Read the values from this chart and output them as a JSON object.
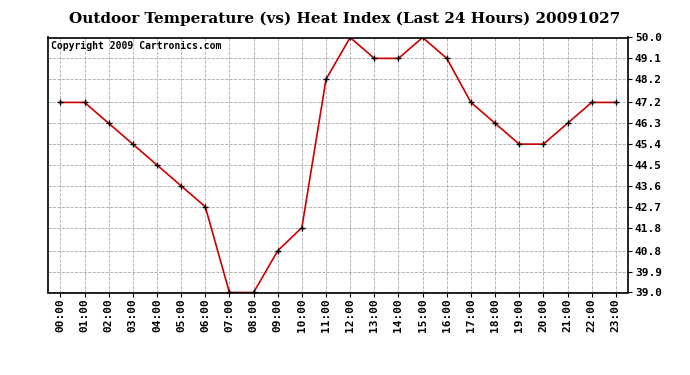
{
  "title": "Outdoor Temperature (vs) Heat Index (Last 24 Hours) 20091027",
  "copyright": "Copyright 2009 Cartronics.com",
  "x_labels": [
    "00:00",
    "01:00",
    "02:00",
    "03:00",
    "04:00",
    "05:00",
    "06:00",
    "07:00",
    "08:00",
    "09:00",
    "10:00",
    "11:00",
    "12:00",
    "13:00",
    "14:00",
    "15:00",
    "16:00",
    "17:00",
    "18:00",
    "19:00",
    "20:00",
    "21:00",
    "22:00",
    "23:00"
  ],
  "y_values": [
    47.2,
    47.2,
    46.3,
    45.4,
    44.5,
    43.6,
    42.7,
    39.0,
    39.0,
    40.8,
    41.8,
    48.2,
    50.0,
    49.1,
    49.1,
    50.0,
    49.1,
    47.2,
    46.3,
    45.4,
    45.4,
    46.3,
    47.2,
    47.2
  ],
  "y_min": 39.0,
  "y_max": 50.0,
  "y_ticks": [
    39.0,
    39.9,
    40.8,
    41.8,
    42.7,
    43.6,
    44.5,
    45.4,
    46.3,
    47.2,
    48.2,
    49.1,
    50.0
  ],
  "line_color": "#cc0000",
  "marker": "+",
  "marker_size": 5,
  "marker_color": "#000000",
  "bg_color": "#ffffff",
  "plot_bg_color": "#ffffff",
  "grid_color": "#aaaaaa",
  "title_fontsize": 11,
  "copyright_fontsize": 7,
  "tick_fontsize": 8
}
